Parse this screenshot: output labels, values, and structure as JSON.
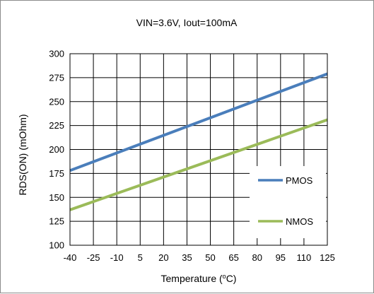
{
  "chart_data": {
    "type": "line",
    "title": "VIN=3.6V, Iout=100mA",
    "xlabel_main": "Temperature (",
    "xlabel_sup": "o",
    "xlabel_end": "C)",
    "ylabel": "RDS(ON) (mOhm)",
    "xlim": [
      -40,
      125
    ],
    "ylim": [
      100,
      300
    ],
    "x_ticks": [
      -40,
      -25,
      -10,
      5,
      20,
      35,
      50,
      65,
      80,
      95,
      110,
      125
    ],
    "y_ticks": [
      100,
      125,
      150,
      175,
      200,
      225,
      250,
      275,
      300
    ],
    "grid": true,
    "legend_position": "bottom-right",
    "series": [
      {
        "name": "PMOS",
        "color": "#4a7ebb",
        "x": [
          -40,
          125
        ],
        "y": [
          178,
          279
        ]
      },
      {
        "name": "NMOS",
        "color": "#9bbb59",
        "x": [
          -40,
          125
        ],
        "y": [
          137,
          231
        ]
      }
    ]
  }
}
